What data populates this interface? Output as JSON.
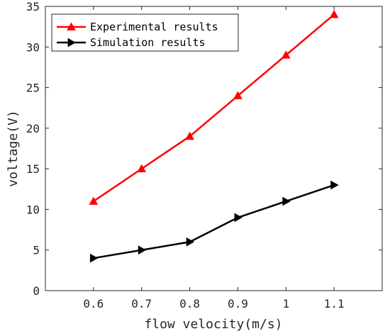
{
  "chart_data": {
    "type": "line",
    "xlabel": "flow velocity(m/s)",
    "ylabel": "voltage(V)",
    "xlim": [
      0.5,
      1.2
    ],
    "ylim": [
      0,
      35
    ],
    "xticks": [
      0.6,
      0.7,
      0.8,
      0.9,
      1.0,
      1.1
    ],
    "xtick_labels": [
      "0.6",
      "0.7",
      "0.8",
      "0.9",
      "1",
      "1.1"
    ],
    "yticks": [
      0,
      5,
      10,
      15,
      20,
      25,
      30,
      35
    ],
    "ytick_labels": [
      "0",
      "5",
      "10",
      "15",
      "20",
      "25",
      "30",
      "35"
    ],
    "grid": false,
    "legend_position": "top-left",
    "x": [
      0.6,
      0.7,
      0.8,
      0.9,
      1.0,
      1.1
    ],
    "series": [
      {
        "name": "Experimental results",
        "values": [
          11,
          15,
          19,
          24,
          29,
          34
        ],
        "color": "#ff0000",
        "marker": "triangle-up"
      },
      {
        "name": "Simulation results",
        "values": [
          4,
          5,
          6,
          9,
          11,
          13
        ],
        "color": "#000000",
        "marker": "triangle-right"
      }
    ]
  }
}
